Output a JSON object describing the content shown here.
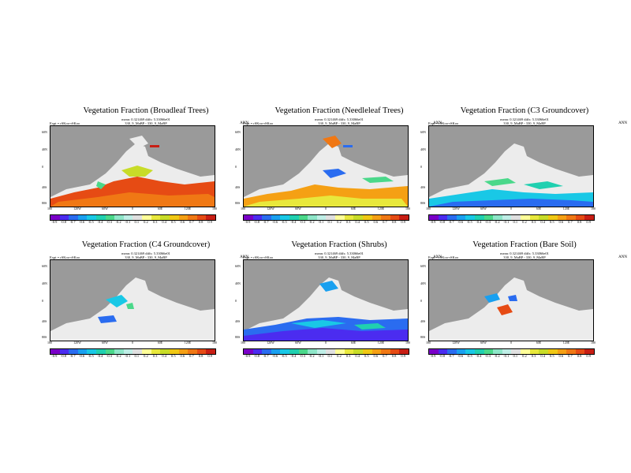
{
  "season": "ANN",
  "experiment_label": "Expt = rSKoo-rSKoo",
  "run_label": "330_9_MaBP - 330_9_MaBP",
  "lat_labels": [
    "60N",
    "40N",
    "0",
    "40S",
    "80S"
  ],
  "lon_labels": [
    "180",
    "120W",
    "60W",
    "0",
    "60E",
    "120E",
    "180"
  ],
  "colorbar_labels": [
    "-0.9",
    "-0.8",
    "-0.7",
    "-0.6",
    "-0.5",
    "-0.4",
    "-0.3",
    "-0.2",
    "-0.1",
    "0.1",
    "0.2",
    "0.3",
    "0.4",
    "0.5",
    "0.6",
    "0.7",
    "0.8",
    "0.9"
  ],
  "colorbar_colors": [
    "#7a00c8",
    "#4b2cf0",
    "#2a6cf0",
    "#19a0f0",
    "#19c8e6",
    "#20d0b0",
    "#4ad88a",
    "#8ee6c8",
    "#bfeee6",
    "#e0e0e0",
    "#ffff99",
    "#e8e83c",
    "#c8dc28",
    "#f0c814",
    "#f5a014",
    "#f07814",
    "#e64b14",
    "#c81e14"
  ],
  "colors": {
    "land_gray": "#9a9a9a",
    "ice_white": "#ececec"
  },
  "panels": [
    {
      "title": "Vegetation Fraction (Broadleaf Trees)",
      "stats": "mean: 0.321469  diffs: 5.33066e01"
    },
    {
      "title": "Vegetation Fraction (Needleleaf Trees)",
      "stats": "mean: 0.321469  diffs: 5.33066e01"
    },
    {
      "title": "Vegetation Fraction (C3 Groundcover)",
      "stats": "mean: 0.321469  diffs: 5.33066e01"
    },
    {
      "title": "Vegetation Fraction (C4 Groundcover)",
      "stats": "mean: 0.321469  diffs: 5.33066e01"
    },
    {
      "title": "Vegetation Fraction (Shrubs)",
      "stats": "mean: 0.321469  diffs: 5.33066e01"
    },
    {
      "title": "Vegetation Fraction (Bare Soil)",
      "stats": "mean: 0.321469  diffs: 5.33066e01"
    }
  ]
}
